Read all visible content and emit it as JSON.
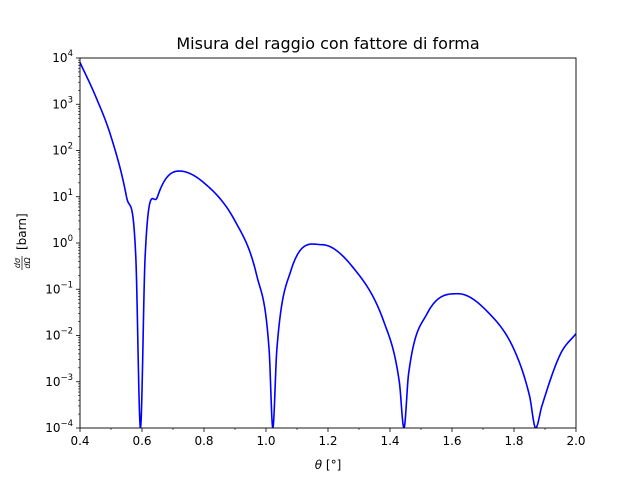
{
  "chart_data": {
    "type": "line",
    "title": "Misura del raggio con fattore di forma",
    "xlabel_symbol": "θ",
    "xlabel_unit": "[°]",
    "ylabel_num": "dσ",
    "ylabel_den": "dΩ",
    "ylabel_unit": "[barn]",
    "xlim": [
      0.4,
      2.0
    ],
    "ylim": [
      0.0001,
      10000
    ],
    "yscale": "log",
    "grid": false,
    "x_ticks": [
      "0.4",
      "0.6",
      "0.8",
      "1.0",
      "1.2",
      "1.4",
      "1.6",
      "1.8",
      "2.0"
    ],
    "y_ticks": [
      {
        "base": "10",
        "exp": "−4"
      },
      {
        "base": "10",
        "exp": "−3"
      },
      {
        "base": "10",
        "exp": "−2"
      },
      {
        "base": "10",
        "exp": "−1"
      },
      {
        "base": "10",
        "exp": "0"
      },
      {
        "base": "10",
        "exp": "1"
      },
      {
        "base": "10",
        "exp": "2"
      },
      {
        "base": "10",
        "exp": "3"
      },
      {
        "base": "10",
        "exp": "4"
      }
    ],
    "series": [
      {
        "color": "#0000ff",
        "x": [
          0.4,
          0.45,
          0.5,
          0.55,
          0.58,
          0.595,
          0.61,
          0.65,
          0.72,
          0.8,
          0.9,
          0.97,
          1.01,
          1.022,
          1.035,
          1.08,
          1.18,
          1.28,
          1.38,
          1.43,
          1.445,
          1.46,
          1.52,
          1.62,
          1.72,
          1.8,
          1.85,
          1.87,
          1.89,
          1.95,
          2.0
        ],
        "y": [
          8000,
          1500,
          200,
          10,
          0.5,
          0.0001,
          0.5,
          10,
          36,
          20,
          3,
          0.2,
          0.005,
          0.0001,
          0.005,
          0.25,
          0.92,
          0.3,
          0.02,
          0.001,
          0.0001,
          0.0015,
          0.03,
          0.08,
          0.03,
          0.005,
          0.0005,
          0.0001,
          0.0003,
          0.004,
          0.011
        ]
      }
    ]
  }
}
